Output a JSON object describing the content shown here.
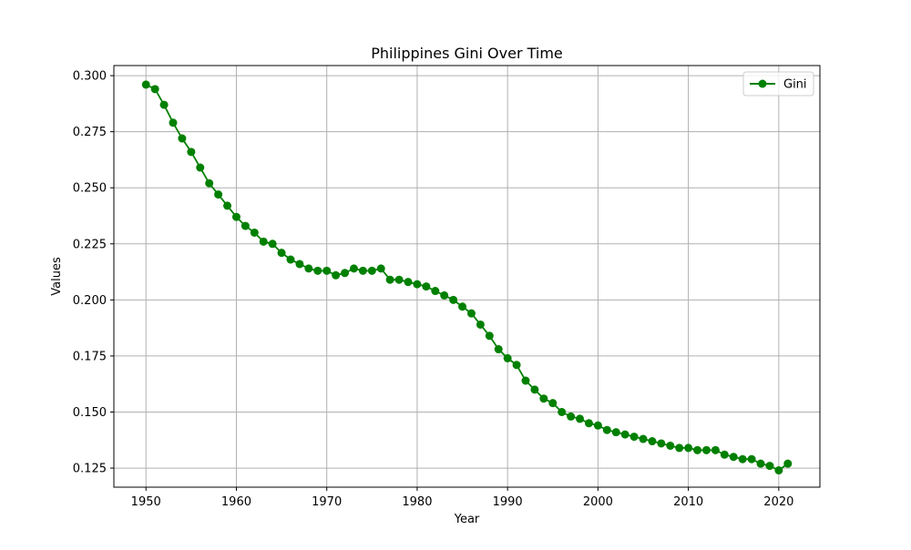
{
  "chart_data": {
    "type": "line",
    "title": "Philippines Gini Over Time",
    "xlabel": "Year",
    "ylabel": "Values",
    "xlim": [
      1946.45,
      2024.55
    ],
    "ylim": [
      0.1165,
      0.3045
    ],
    "xticks": [
      1950,
      1960,
      1970,
      1980,
      1990,
      2000,
      2010,
      2020
    ],
    "xtick_labels": [
      "1950",
      "1960",
      "1970",
      "1980",
      "1990",
      "2000",
      "2010",
      "2020"
    ],
    "yticks": [
      0.125,
      0.15,
      0.175,
      0.2,
      0.225,
      0.25,
      0.275,
      0.3
    ],
    "ytick_labels": [
      "0.125",
      "0.150",
      "0.175",
      "0.200",
      "0.225",
      "0.250",
      "0.275",
      "0.300"
    ],
    "grid": true,
    "legend_position": "top-right",
    "series": [
      {
        "name": "Gini",
        "color": "#008000",
        "marker": "circle",
        "x": [
          1950,
          1951,
          1952,
          1953,
          1954,
          1955,
          1956,
          1957,
          1958,
          1959,
          1960,
          1961,
          1962,
          1963,
          1964,
          1965,
          1966,
          1967,
          1968,
          1969,
          1970,
          1971,
          1972,
          1973,
          1974,
          1975,
          1976,
          1977,
          1978,
          1979,
          1980,
          1981,
          1982,
          1983,
          1984,
          1985,
          1986,
          1987,
          1988,
          1989,
          1990,
          1991,
          1992,
          1993,
          1994,
          1995,
          1996,
          1997,
          1998,
          1999,
          2000,
          2001,
          2002,
          2003,
          2004,
          2005,
          2006,
          2007,
          2008,
          2009,
          2010,
          2011,
          2012,
          2013,
          2014,
          2015,
          2016,
          2017,
          2018,
          2019,
          2020,
          2021
        ],
        "y": [
          0.296,
          0.294,
          0.287,
          0.279,
          0.272,
          0.266,
          0.259,
          0.252,
          0.247,
          0.242,
          0.237,
          0.233,
          0.23,
          0.226,
          0.225,
          0.221,
          0.218,
          0.216,
          0.214,
          0.213,
          0.213,
          0.211,
          0.212,
          0.214,
          0.213,
          0.213,
          0.214,
          0.209,
          0.209,
          0.208,
          0.207,
          0.206,
          0.204,
          0.202,
          0.2,
          0.197,
          0.194,
          0.189,
          0.184,
          0.178,
          0.174,
          0.171,
          0.164,
          0.16,
          0.156,
          0.154,
          0.15,
          0.148,
          0.147,
          0.145,
          0.144,
          0.142,
          0.141,
          0.14,
          0.139,
          0.138,
          0.137,
          0.136,
          0.135,
          0.134,
          0.134,
          0.133,
          0.133,
          0.133,
          0.131,
          0.13,
          0.129,
          0.129,
          0.127,
          0.126,
          0.124,
          0.127
        ]
      }
    ]
  }
}
